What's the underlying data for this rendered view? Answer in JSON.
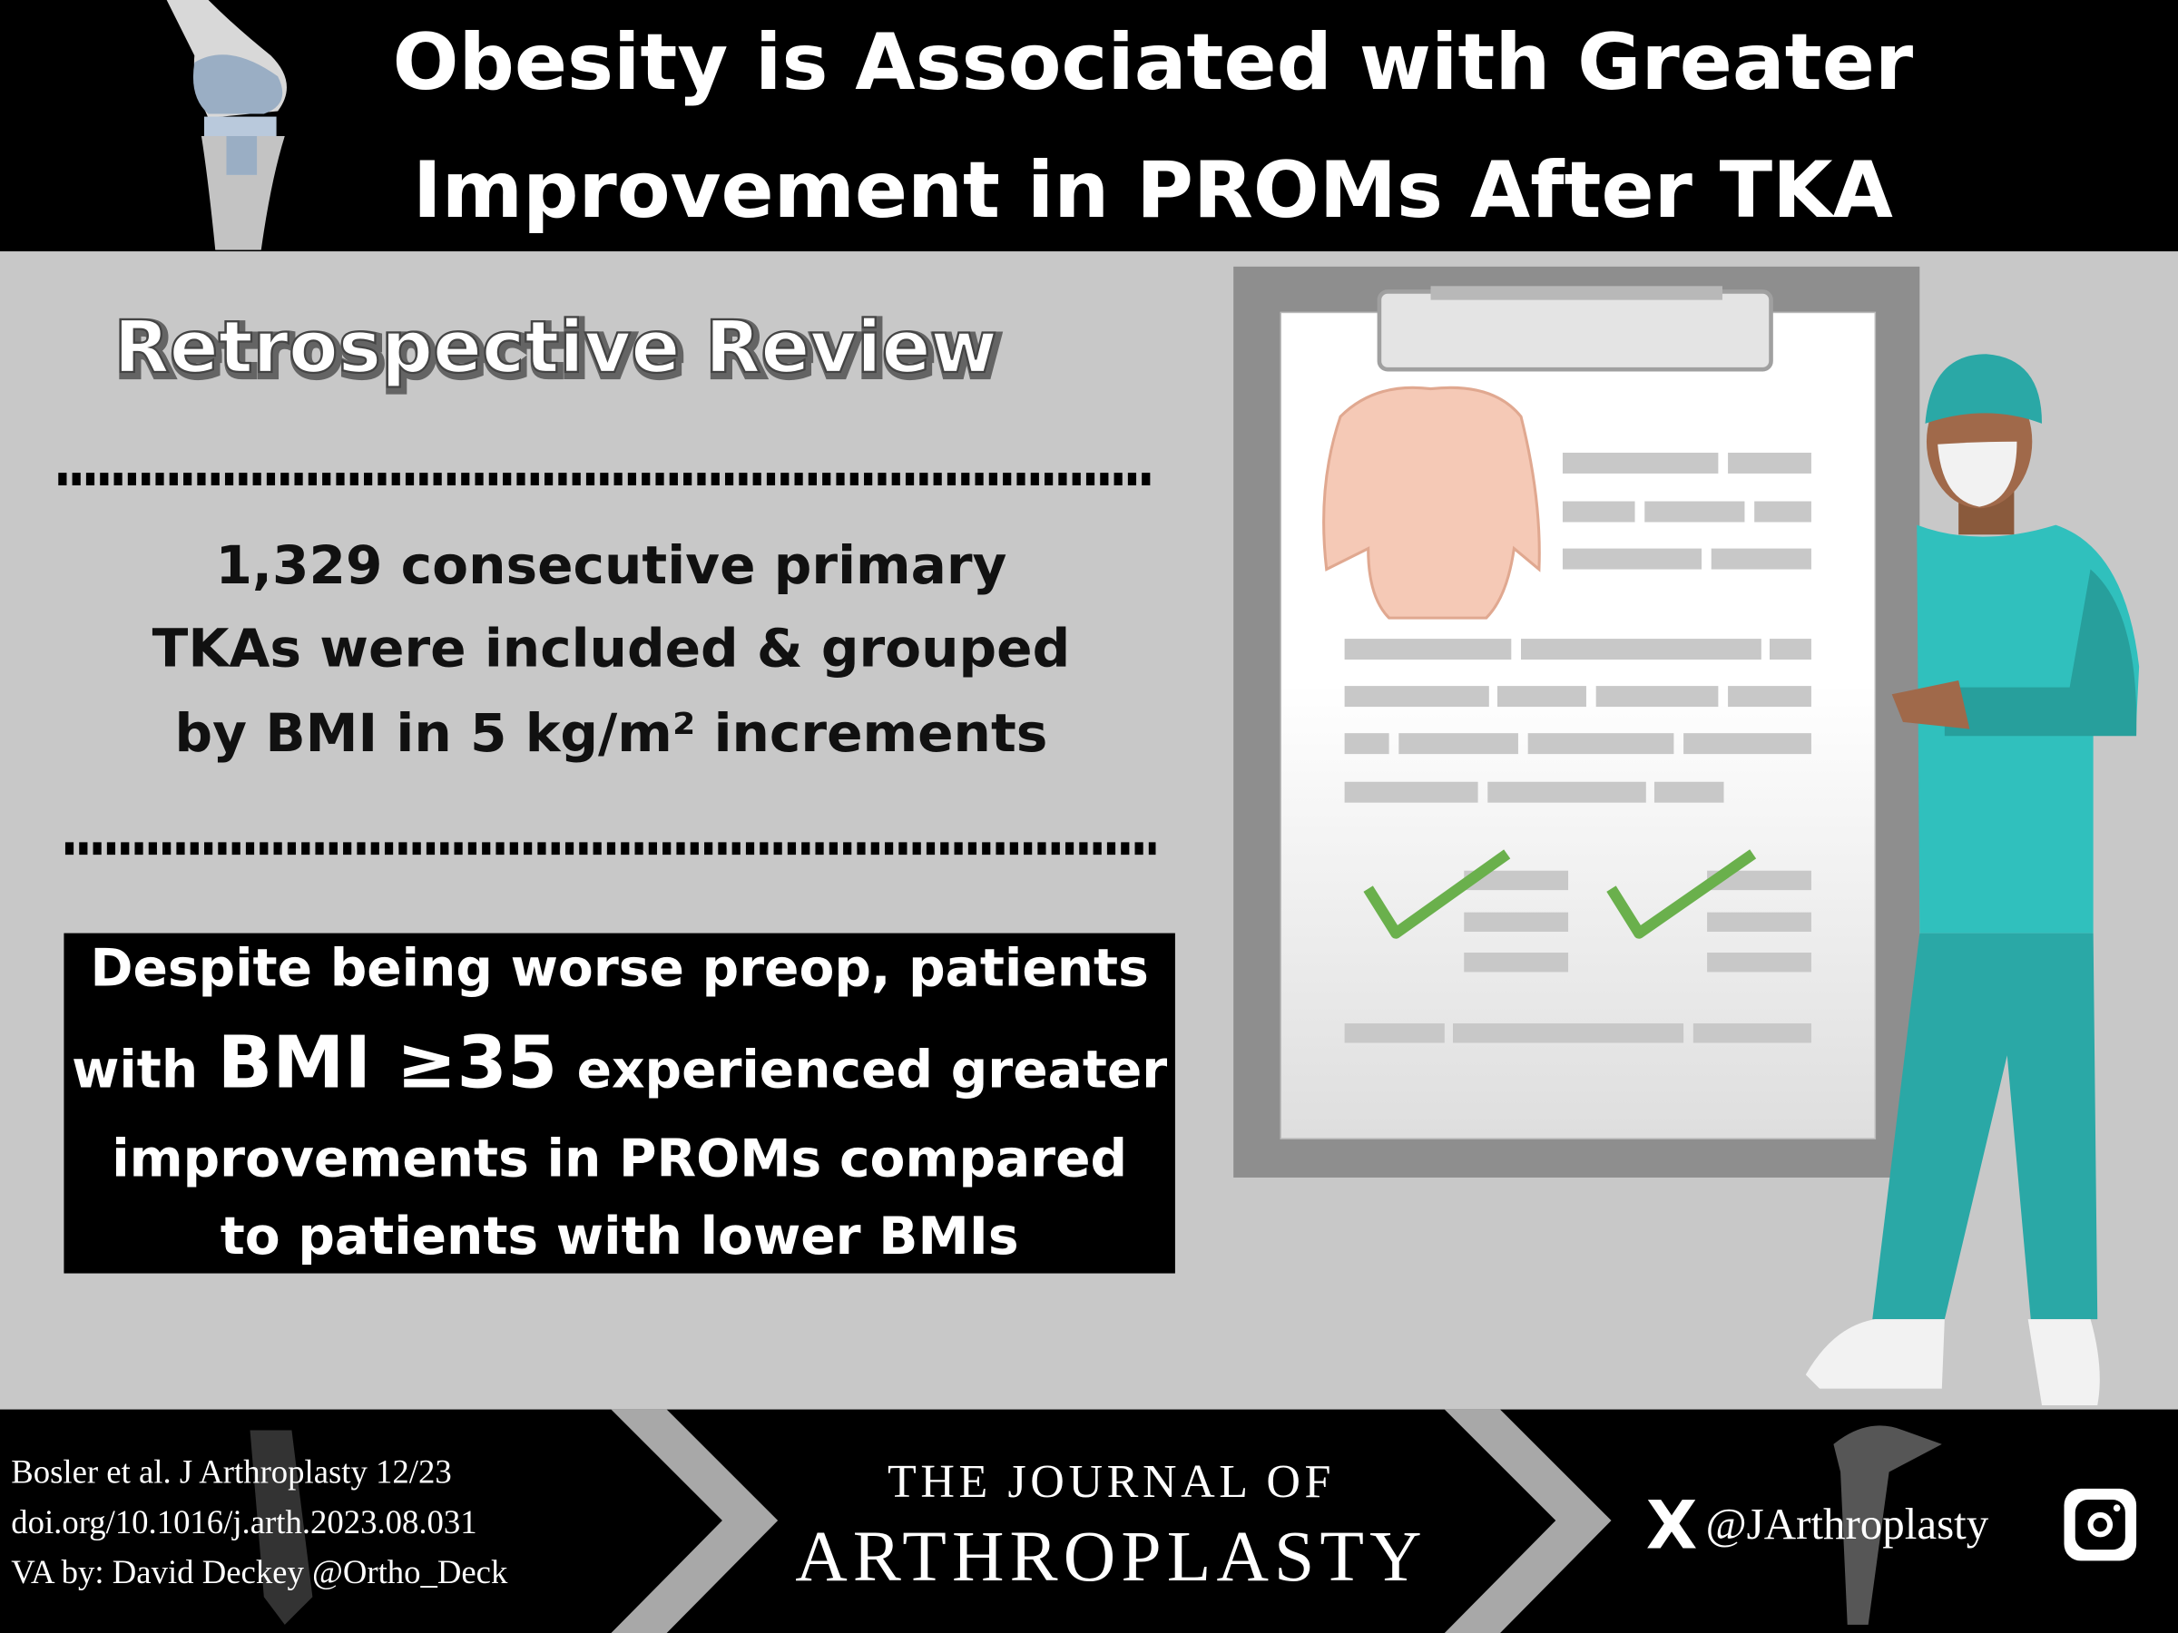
{
  "header": {
    "title_lines": [
      "Obesity is Associated with Greater",
      "Improvement in PROMs After TKA"
    ]
  },
  "study_design": "Retrospective Review",
  "methods_lines": [
    "1,329 consecutive primary",
    "TKAs were included & grouped",
    "by BMI in 5 kg/m² increments"
  ],
  "finding": {
    "line1": "Despite being worse preop, patients",
    "line2_parts": [
      "with",
      "BMI ≥35",
      "experienced greater"
    ],
    "line3": "improvements in PROMs compared",
    "line4": "to patients with lower BMIs"
  },
  "footer": {
    "citation_lines": [
      "Bosler et al. J Arthroplasty 12/23",
      "doi.org/10.1016/j.arth.2023.08.031",
      "VA by: David Deckey @Ortho_Deck"
    ],
    "journal": {
      "line1": "THE JOURNAL OF",
      "line2": "ARTHROPLASTY"
    },
    "social_icon": "X",
    "handle": "@JArthroplasty"
  }
}
